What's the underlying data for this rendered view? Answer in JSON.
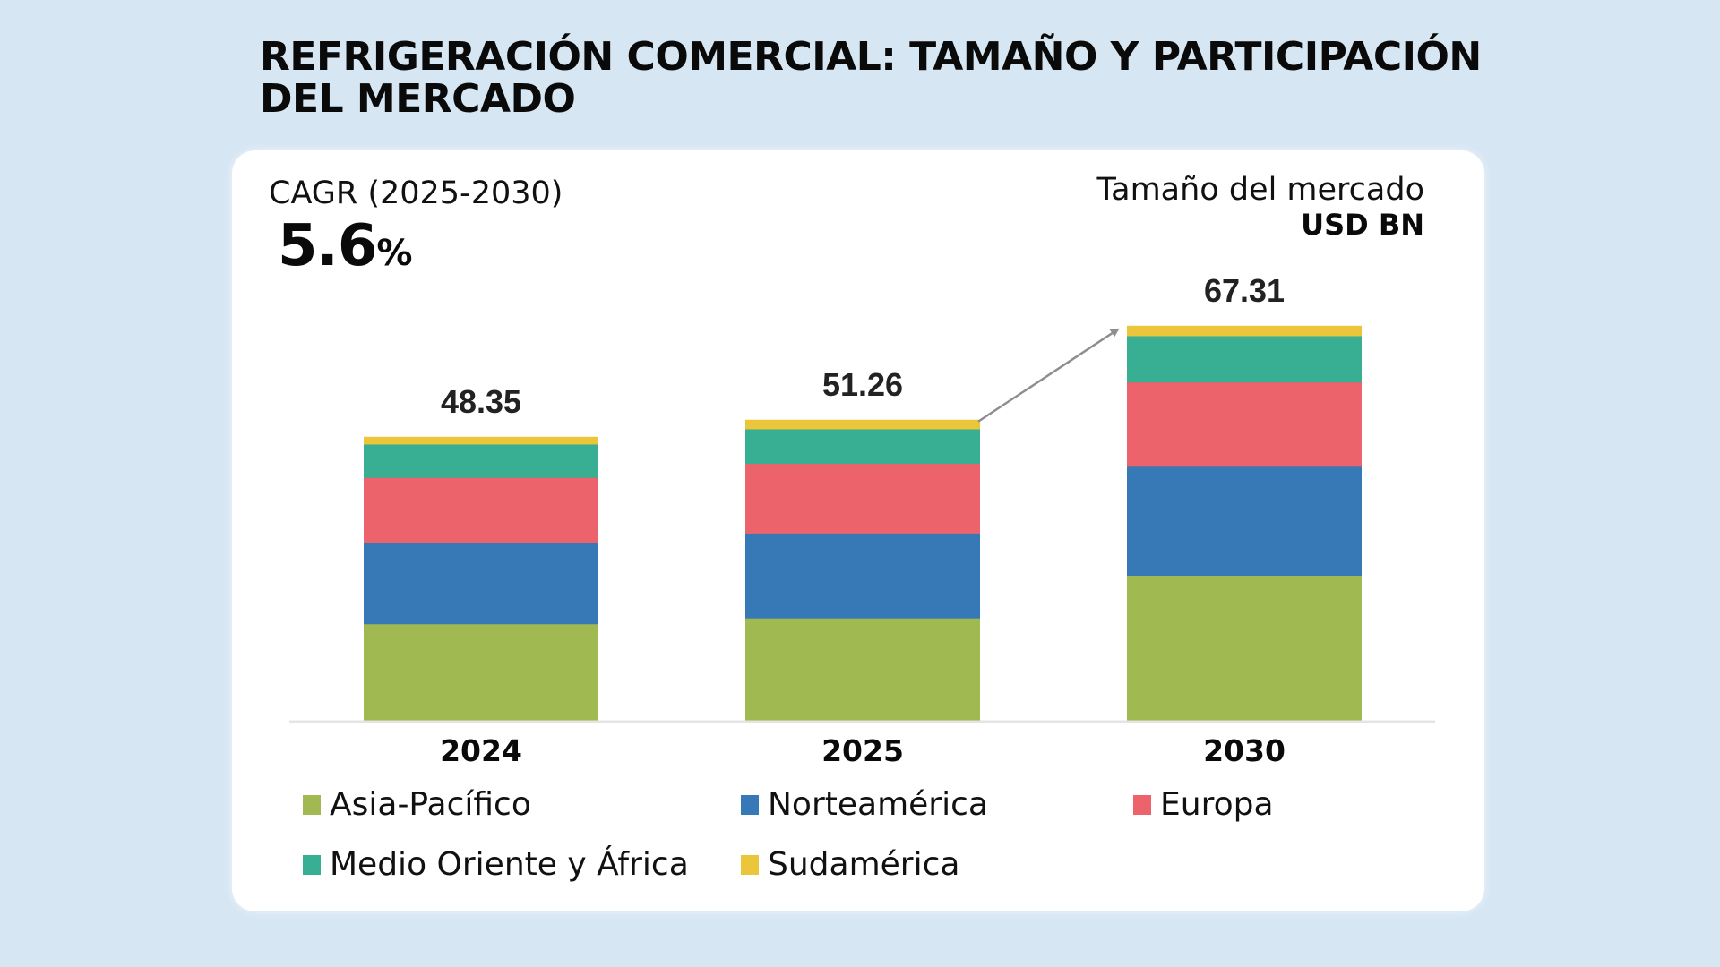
{
  "title": "Refrigeración comercial: tamaño y participación del mercado",
  "cagr": {
    "label": "CAGR (2025-2030)",
    "value": "5.6",
    "unit": "%"
  },
  "market_size": {
    "label": "Tamaño del mercado",
    "unit": "USD BN"
  },
  "chart_data": {
    "type": "bar",
    "stacked": true,
    "title": "Refrigeración comercial: tamaño y participación del mercado",
    "xlabel": "",
    "ylabel": "USD BN",
    "categories": [
      "2024",
      "2025",
      "2030"
    ],
    "totals": [
      48.35,
      51.26,
      67.31
    ],
    "total_labels": [
      "48.35",
      "51.26",
      "67.31"
    ],
    "ylim": [
      0,
      70
    ],
    "grid": false,
    "legend_position": "bottom",
    "annotation": "growth arrow from 2025 bar top to 2030 bar top",
    "series": [
      {
        "name": "Asia-Pacífico",
        "color": "#a1b951",
        "values": [
          16.4,
          17.4,
          24.7
        ]
      },
      {
        "name": "Norteamérica",
        "color": "#3778b7",
        "values": [
          13.9,
          14.5,
          18.6
        ]
      },
      {
        "name": "Europa",
        "color": "#ec636b",
        "values": [
          11.1,
          11.9,
          14.4
        ]
      },
      {
        "name": "Medio Oriente y África",
        "color": "#38ae92",
        "values": [
          5.7,
          5.9,
          7.9
        ]
      },
      {
        "name": "Sudamérica",
        "color": "#ebc63a",
        "values": [
          1.25,
          1.56,
          1.71
        ]
      }
    ]
  },
  "legend": [
    {
      "label": "Asia-Pacífico",
      "color": "#a1b951"
    },
    {
      "label": "Norteamérica",
      "color": "#3778b7"
    },
    {
      "label": "Europa",
      "color": "#ec636b"
    },
    {
      "label": "Medio Oriente y África",
      "color": "#38ae92"
    },
    {
      "label": "Sudamérica",
      "color": "#ebc63a"
    }
  ]
}
